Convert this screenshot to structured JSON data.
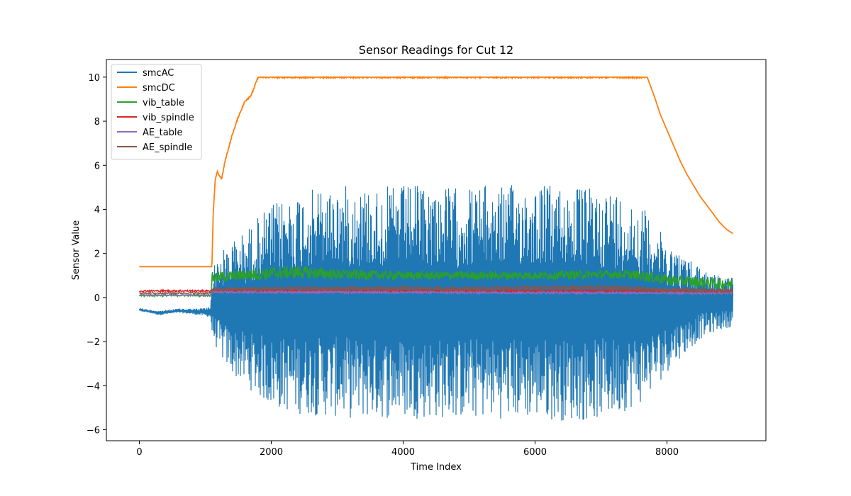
{
  "chart_data": {
    "type": "line",
    "title": "Sensor Readings for Cut 12",
    "xlabel": "Time Index",
    "ylabel": "Sensor Value",
    "xlim": [
      -500,
      9500
    ],
    "ylim": [
      -6.5,
      10.8
    ],
    "xticks": [
      0,
      2000,
      4000,
      6000,
      8000
    ],
    "yticks": [
      -6,
      -4,
      -2,
      0,
      2,
      4,
      6,
      8,
      10
    ],
    "grid": false,
    "legend_position": "top-left",
    "series": [
      {
        "name": "smcAC",
        "color": "#1f77b4",
        "style": "oscillating-band",
        "x": [
          0,
          300,
          600,
          900,
          1080,
          1100,
          1150,
          1250,
          1400,
          1600,
          1800,
          2000,
          2400,
          2800,
          3200,
          3600,
          4000,
          4400,
          4800,
          5200,
          5600,
          6000,
          6400,
          6800,
          7200,
          7600,
          7700,
          7900,
          8100,
          8300,
          8500,
          8700,
          9000
        ],
        "upper": [
          -0.5,
          -0.6,
          -0.5,
          -0.5,
          -0.4,
          1.2,
          1.6,
          2.1,
          2.6,
          3.0,
          3.7,
          4.2,
          4.8,
          5.0,
          5.1,
          5.0,
          5.1,
          5.1,
          5.0,
          5.1,
          5.1,
          5.2,
          5.1,
          5.0,
          4.9,
          4.2,
          3.9,
          3.0,
          2.3,
          1.8,
          1.5,
          1.1,
          0.9
        ],
        "lower": [
          -0.6,
          -0.8,
          -0.7,
          -0.8,
          -0.9,
          -1.8,
          -2.2,
          -2.8,
          -3.5,
          -4.0,
          -4.5,
          -5.0,
          -5.3,
          -5.4,
          -5.5,
          -5.5,
          -5.5,
          -5.5,
          -5.5,
          -5.5,
          -5.5,
          -5.5,
          -5.6,
          -5.6,
          -5.4,
          -4.8,
          -4.5,
          -3.8,
          -3.0,
          -2.5,
          -1.9,
          -1.6,
          -1.3
        ]
      },
      {
        "name": "smcDC",
        "color": "#ff7f0e",
        "style": "line",
        "x": [
          0,
          1100,
          1120,
          1150,
          1180,
          1220,
          1250,
          1300,
          1400,
          1500,
          1600,
          1700,
          1750,
          1800,
          7700,
          7800,
          7900,
          8000,
          8100,
          8200,
          8300,
          8400,
          8500,
          8600,
          8700,
          8800,
          8900,
          9000
        ],
        "y": [
          1.4,
          1.4,
          3.8,
          5.3,
          5.7,
          5.5,
          5.4,
          6.2,
          7.3,
          8.2,
          8.9,
          9.2,
          9.6,
          10.0,
          10.0,
          9.2,
          8.3,
          7.6,
          6.9,
          6.2,
          5.6,
          5.1,
          4.6,
          4.2,
          3.8,
          3.4,
          3.1,
          2.9
        ]
      },
      {
        "name": "vib_table",
        "color": "#2ca02c",
        "style": "noisy-band",
        "x": [
          0,
          1080,
          1100,
          1500,
          2000,
          2400,
          3000,
          4000,
          5000,
          6000,
          7000,
          7400,
          7700,
          8000,
          8500,
          9000
        ],
        "y": [
          0.1,
          0.1,
          0.9,
          1.0,
          1.1,
          1.15,
          1.05,
          1.0,
          1.0,
          1.0,
          1.05,
          1.05,
          0.95,
          0.8,
          0.7,
          0.6
        ],
        "amplitude": [
          0.05,
          0.05,
          0.25,
          0.25,
          0.3,
          0.3,
          0.25,
          0.2,
          0.2,
          0.2,
          0.2,
          0.2,
          0.25,
          0.25,
          0.25,
          0.25
        ]
      },
      {
        "name": "vib_spindle",
        "color": "#d62728",
        "style": "noisy-band",
        "x": [
          0,
          1080,
          1100,
          9000
        ],
        "y": [
          0.3,
          0.3,
          0.3,
          0.3
        ],
        "amplitude": [
          0.04,
          0.04,
          0.04,
          0.04
        ]
      },
      {
        "name": "AE_table",
        "color": "#9467bd",
        "style": "noisy-band",
        "x": [
          0,
          1080,
          1100,
          9000
        ],
        "y": [
          0.1,
          0.1,
          0.25,
          0.2
        ],
        "amplitude": [
          0.02,
          0.02,
          0.05,
          0.05
        ]
      },
      {
        "name": "AE_spindle",
        "color": "#8c564b",
        "style": "noisy-band",
        "x": [
          0,
          1080,
          1100,
          2000,
          5000,
          7000,
          8000,
          9000
        ],
        "y": [
          0.2,
          0.2,
          0.35,
          0.4,
          0.4,
          0.45,
          0.35,
          0.3
        ],
        "amplitude": [
          0.03,
          0.03,
          0.08,
          0.1,
          0.1,
          0.1,
          0.1,
          0.1
        ]
      }
    ]
  }
}
